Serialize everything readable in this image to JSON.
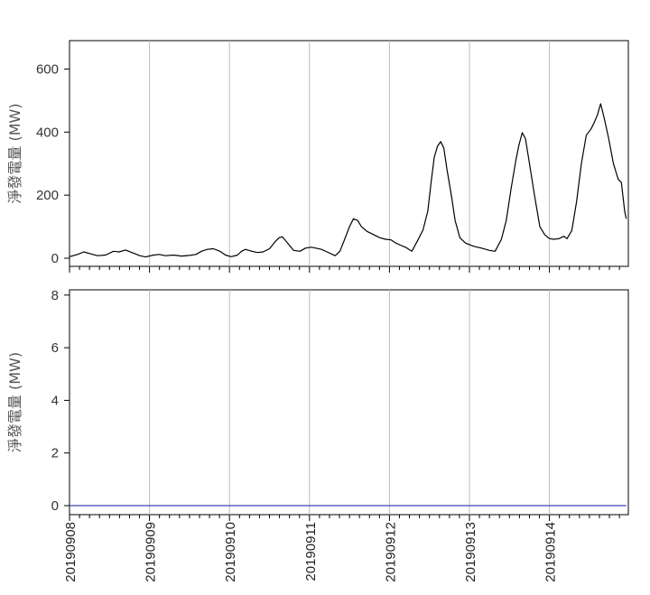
{
  "chart_data": [
    {
      "type": "line",
      "ylabel": "淨發電量 (MW)",
      "ylim": [
        0,
        690
      ],
      "yticks": [
        0,
        200,
        400,
        600
      ],
      "x_range_days": [
        0,
        6.96
      ],
      "grid": "vertical-at-dates",
      "series": [
        {
          "color": "#000000",
          "points": [
            [
              0.0,
              5
            ],
            [
              0.1,
              12
            ],
            [
              0.18,
              20
            ],
            [
              0.25,
              15
            ],
            [
              0.35,
              8
            ],
            [
              0.45,
              10
            ],
            [
              0.55,
              22
            ],
            [
              0.62,
              20
            ],
            [
              0.7,
              26
            ],
            [
              0.78,
              18
            ],
            [
              0.88,
              8
            ],
            [
              0.95,
              4
            ],
            [
              1.05,
              10
            ],
            [
              1.12,
              12
            ],
            [
              1.2,
              8
            ],
            [
              1.3,
              10
            ],
            [
              1.4,
              7
            ],
            [
              1.5,
              9
            ],
            [
              1.58,
              12
            ],
            [
              1.65,
              22
            ],
            [
              1.72,
              28
            ],
            [
              1.8,
              30
            ],
            [
              1.88,
              22
            ],
            [
              1.95,
              10
            ],
            [
              2.02,
              5
            ],
            [
              2.1,
              10
            ],
            [
              2.15,
              22
            ],
            [
              2.2,
              28
            ],
            [
              2.28,
              22
            ],
            [
              2.35,
              18
            ],
            [
              2.42,
              20
            ],
            [
              2.5,
              30
            ],
            [
              2.58,
              55
            ],
            [
              2.62,
              65
            ],
            [
              2.66,
              68
            ],
            [
              2.72,
              50
            ],
            [
              2.8,
              25
            ],
            [
              2.88,
              22
            ],
            [
              2.95,
              32
            ],
            [
              3.02,
              35
            ],
            [
              3.08,
              32
            ],
            [
              3.15,
              28
            ],
            [
              3.22,
              20
            ],
            [
              3.32,
              8
            ],
            [
              3.38,
              22
            ],
            [
              3.44,
              60
            ],
            [
              3.5,
              100
            ],
            [
              3.55,
              125
            ],
            [
              3.6,
              120
            ],
            [
              3.65,
              100
            ],
            [
              3.72,
              85
            ],
            [
              3.8,
              75
            ],
            [
              3.88,
              65
            ],
            [
              3.95,
              60
            ],
            [
              4.02,
              58
            ],
            [
              4.08,
              48
            ],
            [
              4.15,
              40
            ],
            [
              4.2,
              35
            ],
            [
              4.28,
              22
            ],
            [
              4.35,
              55
            ],
            [
              4.42,
              90
            ],
            [
              4.48,
              150
            ],
            [
              4.52,
              240
            ],
            [
              4.56,
              320
            ],
            [
              4.6,
              355
            ],
            [
              4.64,
              370
            ],
            [
              4.68,
              350
            ],
            [
              4.72,
              280
            ],
            [
              4.78,
              190
            ],
            [
              4.82,
              120
            ],
            [
              4.88,
              65
            ],
            [
              4.95,
              48
            ],
            [
              5.05,
              38
            ],
            [
              5.15,
              32
            ],
            [
              5.25,
              25
            ],
            [
              5.32,
              22
            ],
            [
              5.4,
              60
            ],
            [
              5.46,
              120
            ],
            [
              5.52,
              220
            ],
            [
              5.58,
              310
            ],
            [
              5.62,
              360
            ],
            [
              5.66,
              398
            ],
            [
              5.7,
              380
            ],
            [
              5.75,
              300
            ],
            [
              5.8,
              220
            ],
            [
              5.84,
              160
            ],
            [
              5.88,
              100
            ],
            [
              5.94,
              75
            ],
            [
              6.0,
              62
            ],
            [
              6.06,
              60
            ],
            [
              6.12,
              62
            ],
            [
              6.18,
              70
            ],
            [
              6.22,
              62
            ],
            [
              6.28,
              88
            ],
            [
              6.34,
              180
            ],
            [
              6.4,
              300
            ],
            [
              6.46,
              390
            ],
            [
              6.52,
              410
            ],
            [
              6.56,
              430
            ],
            [
              6.6,
              455
            ],
            [
              6.64,
              490
            ],
            [
              6.68,
              450
            ],
            [
              6.74,
              380
            ],
            [
              6.8,
              300
            ],
            [
              6.86,
              250
            ],
            [
              6.9,
              240
            ],
            [
              6.94,
              150
            ],
            [
              6.96,
              125
            ]
          ]
        }
      ]
    },
    {
      "type": "line",
      "ylabel": "淨發電量 (MW)",
      "ylim": [
        0,
        8.2
      ],
      "yticks": [
        0,
        2,
        4,
        6,
        8
      ],
      "x_range_days": [
        0,
        6.96
      ],
      "grid": "vertical-at-dates",
      "series": [
        {
          "color": "#4444bb",
          "points": [
            [
              0.0,
              0
            ],
            [
              6.96,
              0
            ]
          ]
        }
      ]
    }
  ],
  "x_dates": [
    "20190908",
    "20190909",
    "20190910",
    "20190911",
    "20190912",
    "20190913",
    "20190914"
  ]
}
